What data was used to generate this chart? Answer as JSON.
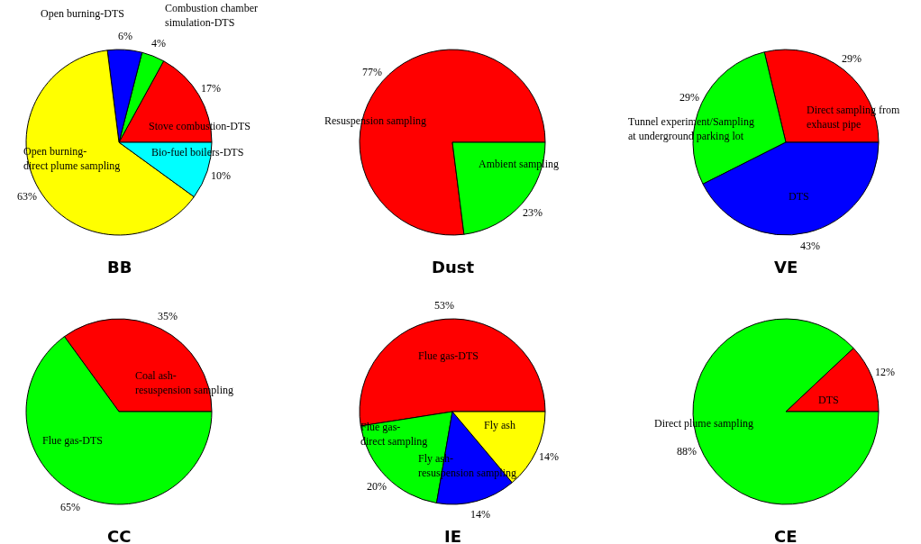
{
  "chart_data": [
    {
      "type": "pie",
      "title": "BB",
      "categories": [
        "Stove combustion-DTS",
        "Combustion chamber\nsimulation-DTS",
        "Open burning-DTS",
        "Open burning-\ndirect plume sampling",
        "Bio-fuel boilers-DTS"
      ],
      "values": [
        17,
        4,
        6,
        63,
        10
      ],
      "value_labels": [
        "17%",
        "4%",
        "6%",
        "63%",
        "10%"
      ],
      "colors": [
        "#ff0000",
        "#00ff00",
        "#0000ff",
        "#ffff00",
        "#00ffff"
      ]
    },
    {
      "type": "pie",
      "title": "Dust",
      "categories": [
        "Resuspension sampling",
        "Ambient sampling"
      ],
      "values": [
        77,
        23
      ],
      "value_labels": [
        "77%",
        "23%"
      ],
      "colors": [
        "#ff0000",
        "#00ff00"
      ]
    },
    {
      "type": "pie",
      "title": "VE",
      "categories": [
        "Direct sampling from\nexhaust pipe",
        "Tunnel experiment/Sampling\nat underground parking lot",
        "DTS"
      ],
      "values": [
        29,
        29,
        43
      ],
      "value_labels": [
        "29%",
        "29%",
        "43%"
      ],
      "colors": [
        "#ff0000",
        "#00ff00",
        "#0000ff"
      ]
    },
    {
      "type": "pie",
      "title": "CC",
      "categories": [
        "Coal ash-\nresuspension sampling",
        "Flue gas-DTS"
      ],
      "values": [
        35,
        65
      ],
      "value_labels": [
        "35%",
        "65%"
      ],
      "colors": [
        "#ff0000",
        "#00ff00"
      ]
    },
    {
      "type": "pie",
      "title": "IE",
      "categories": [
        "Flue gas-DTS",
        "Flue gas-\ndirect sampling",
        "Fly ash-\nresuspension sampling",
        "Fly ash"
      ],
      "values": [
        53,
        20,
        14,
        14
      ],
      "value_labels": [
        "53%",
        "20%",
        "14%",
        "14%"
      ],
      "colors": [
        "#ff0000",
        "#00ff00",
        "#0000ff",
        "#ffff00"
      ]
    },
    {
      "type": "pie",
      "title": "CE",
      "categories": [
        "DTS",
        "Direct plume sampling"
      ],
      "values": [
        12,
        88
      ],
      "value_labels": [
        "12%",
        "88%"
      ],
      "colors": [
        "#ff0000",
        "#00ff00"
      ]
    }
  ]
}
